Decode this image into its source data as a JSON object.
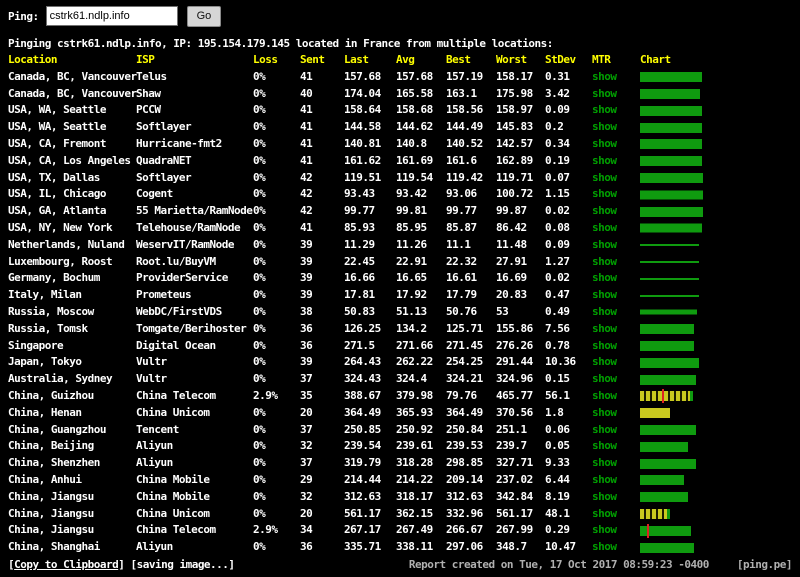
{
  "form": {
    "label": "Ping:",
    "input_value": "cstrk61.ndlp.info",
    "go_label": "Go"
  },
  "status_line": "Pinging cstrk61.ndlp.info, IP: 195.154.179.145 located in France from multiple locations:",
  "table": {
    "headers": [
      "Location",
      "ISP",
      "Loss",
      "Sent",
      "Last",
      "Avg",
      "Best",
      "Worst",
      "StDev",
      "MTR",
      "Chart"
    ],
    "mtr_label": "show",
    "rows": [
      {
        "location": "Canada, BC, Vancouver",
        "isp": "Telus",
        "loss": "0%",
        "sent": "41",
        "last": "157.68",
        "avg": "157.68",
        "best": "157.19",
        "worst": "158.17",
        "stdev": "0.31",
        "bar": {
          "color": "green"
        }
      },
      {
        "location": "Canada, BC, Vancouver",
        "isp": "Shaw",
        "loss": "0%",
        "sent": "40",
        "last": "174.04",
        "avg": "165.58",
        "best": "163.1",
        "worst": "175.98",
        "stdev": "3.42",
        "bar": {
          "color": "green"
        }
      },
      {
        "location": "USA, WA, Seattle",
        "isp": "PCCW",
        "loss": "0%",
        "sent": "41",
        "last": "158.64",
        "avg": "158.68",
        "best": "158.56",
        "worst": "158.97",
        "stdev": "0.09",
        "bar": {
          "color": "green"
        }
      },
      {
        "location": "USA, WA, Seattle",
        "isp": "Softlayer",
        "loss": "0%",
        "sent": "41",
        "last": "144.58",
        "avg": "144.62",
        "best": "144.49",
        "worst": "145.83",
        "stdev": "0.2",
        "bar": {
          "color": "green"
        }
      },
      {
        "location": "USA, CA, Fremont",
        "isp": "Hurricane-fmt2",
        "loss": "0%",
        "sent": "41",
        "last": "140.81",
        "avg": "140.8",
        "best": "140.52",
        "worst": "142.57",
        "stdev": "0.34",
        "bar": {
          "color": "green"
        }
      },
      {
        "location": "USA, CA, Los Angeles",
        "isp": "QuadraNET",
        "loss": "0%",
        "sent": "41",
        "last": "161.62",
        "avg": "161.69",
        "best": "161.6",
        "worst": "162.89",
        "stdev": "0.19",
        "bar": {
          "color": "green"
        }
      },
      {
        "location": "USA, TX, Dallas",
        "isp": "Softlayer",
        "loss": "0%",
        "sent": "42",
        "last": "119.51",
        "avg": "119.54",
        "best": "119.42",
        "worst": "119.71",
        "stdev": "0.07",
        "bar": {
          "color": "green"
        }
      },
      {
        "location": "USA, IL, Chicago",
        "isp": "Cogent",
        "loss": "0%",
        "sent": "42",
        "last": "93.43",
        "avg": "93.42",
        "best": "93.06",
        "worst": "100.72",
        "stdev": "1.15",
        "bar": {
          "color": "green"
        }
      },
      {
        "location": "USA, GA, Atlanta",
        "isp": "55 Marietta/RamNode",
        "loss": "0%",
        "sent": "42",
        "last": "99.77",
        "avg": "99.81",
        "best": "99.77",
        "worst": "99.87",
        "stdev": "0.02",
        "bar": {
          "color": "green"
        }
      },
      {
        "location": "USA, NY, New York",
        "isp": "Telehouse/RamNode",
        "loss": "0%",
        "sent": "41",
        "last": "85.93",
        "avg": "85.95",
        "best": "85.87",
        "worst": "86.42",
        "stdev": "0.08",
        "bar": {
          "color": "green"
        }
      },
      {
        "location": "Netherlands, Nuland",
        "isp": "WeservIT/RamNode",
        "loss": "0%",
        "sent": "39",
        "last": "11.29",
        "avg": "11.26",
        "best": "11.1",
        "worst": "11.48",
        "stdev": "0.09",
        "bar": {
          "color": "green"
        }
      },
      {
        "location": "Luxembourg, Roost",
        "isp": "Root.lu/BuyVM",
        "loss": "0%",
        "sent": "39",
        "last": "22.45",
        "avg": "22.91",
        "best": "22.32",
        "worst": "27.91",
        "stdev": "1.27",
        "bar": {
          "color": "green"
        }
      },
      {
        "location": "Germany, Bochum",
        "isp": "ProviderService",
        "loss": "0%",
        "sent": "39",
        "last": "16.66",
        "avg": "16.65",
        "best": "16.61",
        "worst": "16.69",
        "stdev": "0.02",
        "bar": {
          "color": "green"
        }
      },
      {
        "location": "Italy, Milan",
        "isp": "Prometeus",
        "loss": "0%",
        "sent": "39",
        "last": "17.81",
        "avg": "17.92",
        "best": "17.79",
        "worst": "20.83",
        "stdev": "0.47",
        "bar": {
          "color": "green"
        }
      },
      {
        "location": "Russia, Moscow",
        "isp": "WebDC/FirstVDS",
        "loss": "0%",
        "sent": "38",
        "last": "50.83",
        "avg": "51.13",
        "best": "50.76",
        "worst": "53",
        "stdev": "0.49",
        "bar": {
          "color": "green"
        }
      },
      {
        "location": "Russia, Tomsk",
        "isp": "Tomgate/Berihoster",
        "loss": "0%",
        "sent": "36",
        "last": "126.25",
        "avg": "134.2",
        "best": "125.71",
        "worst": "155.86",
        "stdev": "7.56",
        "bar": {
          "color": "green"
        }
      },
      {
        "location": "Singapore",
        "isp": "Digital Ocean",
        "loss": "0%",
        "sent": "36",
        "last": "271.5",
        "avg": "271.66",
        "best": "271.45",
        "worst": "276.26",
        "stdev": "0.78",
        "bar": {
          "color": "green"
        }
      },
      {
        "location": "Japan, Tokyo",
        "isp": "Vultr",
        "loss": "0%",
        "sent": "39",
        "last": "264.43",
        "avg": "262.22",
        "best": "254.25",
        "worst": "291.44",
        "stdev": "10.36",
        "bar": {
          "color": "green"
        }
      },
      {
        "location": "Australia, Sydney",
        "isp": "Vultr",
        "loss": "0%",
        "sent": "37",
        "last": "324.43",
        "avg": "324.4",
        "best": "324.21",
        "worst": "324.96",
        "stdev": "0.15",
        "bar": {
          "color": "green"
        }
      },
      {
        "location": "China, Guizhou",
        "isp": "China Telecom",
        "loss": "2.9%",
        "sent": "35",
        "last": "388.67",
        "avg": "379.98",
        "best": "79.76",
        "worst": "465.77",
        "stdev": "56.1",
        "bar": {
          "color": "yellow",
          "striped": true,
          "red_mark": 0.42,
          "green_tip": true
        }
      },
      {
        "location": "China, Henan",
        "isp": "China Unicom",
        "loss": "0%",
        "sent": "20",
        "last": "364.49",
        "avg": "365.93",
        "best": "364.49",
        "worst": "370.56",
        "stdev": "1.8",
        "bar": {
          "color": "yellow"
        }
      },
      {
        "location": "China, Guangzhou",
        "isp": "Tencent",
        "loss": "0%",
        "sent": "37",
        "last": "250.85",
        "avg": "250.92",
        "best": "250.84",
        "worst": "251.1",
        "stdev": "0.06",
        "bar": {
          "color": "green"
        }
      },
      {
        "location": "China, Beijing",
        "isp": "Aliyun",
        "loss": "0%",
        "sent": "32",
        "last": "239.54",
        "avg": "239.61",
        "best": "239.53",
        "worst": "239.7",
        "stdev": "0.05",
        "bar": {
          "color": "green"
        }
      },
      {
        "location": "China, Shenzhen",
        "isp": "Aliyun",
        "loss": "0%",
        "sent": "37",
        "last": "319.79",
        "avg": "318.28",
        "best": "298.85",
        "worst": "327.71",
        "stdev": "9.33",
        "bar": {
          "color": "green"
        }
      },
      {
        "location": "China, Anhui",
        "isp": "China Mobile",
        "loss": "0%",
        "sent": "29",
        "last": "214.44",
        "avg": "214.22",
        "best": "209.14",
        "worst": "237.02",
        "stdev": "6.44",
        "bar": {
          "color": "green"
        }
      },
      {
        "location": "China, Jiangsu",
        "isp": "China Mobile",
        "loss": "0%",
        "sent": "32",
        "last": "312.63",
        "avg": "318.17",
        "best": "312.63",
        "worst": "342.84",
        "stdev": "8.19",
        "bar": {
          "color": "green"
        }
      },
      {
        "location": "China, Jiangsu",
        "isp": "China Unicom",
        "loss": "0%",
        "sent": "20",
        "last": "561.17",
        "avg": "362.15",
        "best": "332.96",
        "worst": "561.17",
        "stdev": "48.1",
        "bar": {
          "color": "yellow",
          "striped": true,
          "green_tip": true
        }
      },
      {
        "location": "China, Jiangsu",
        "isp": "China Telecom",
        "loss": "2.9%",
        "sent": "34",
        "last": "267.17",
        "avg": "267.49",
        "best": "266.67",
        "worst": "267.99",
        "stdev": "0.29",
        "bar": {
          "color": "green",
          "red_mark": 0.13
        }
      },
      {
        "location": "China, Shanghai",
        "isp": "Aliyun",
        "loss": "0%",
        "sent": "36",
        "last": "335.71",
        "avg": "338.11",
        "best": "297.06",
        "worst": "348.7",
        "stdev": "10.47",
        "bar": {
          "color": "green"
        }
      }
    ]
  },
  "footer": {
    "lbracket": "[",
    "copy_label": "Copy to Clipboard",
    "rbracket": "]",
    "saving": " [saving image...]",
    "report": "Report created on Tue, 17 Oct 2017 08:59:23 -0400",
    "brand": "[ping.pe]"
  },
  "colors": {
    "header_yellow": "#ffff00",
    "text_white": "#ffffff",
    "link_green": "#00a000",
    "bar_green": "#0f9b0f",
    "bar_yellow": "#c9c91f",
    "bar_stripe": "#1c1c00",
    "loss_red": "#dd2222",
    "footer_gray": "#b0b0b0",
    "background": "#000000"
  }
}
